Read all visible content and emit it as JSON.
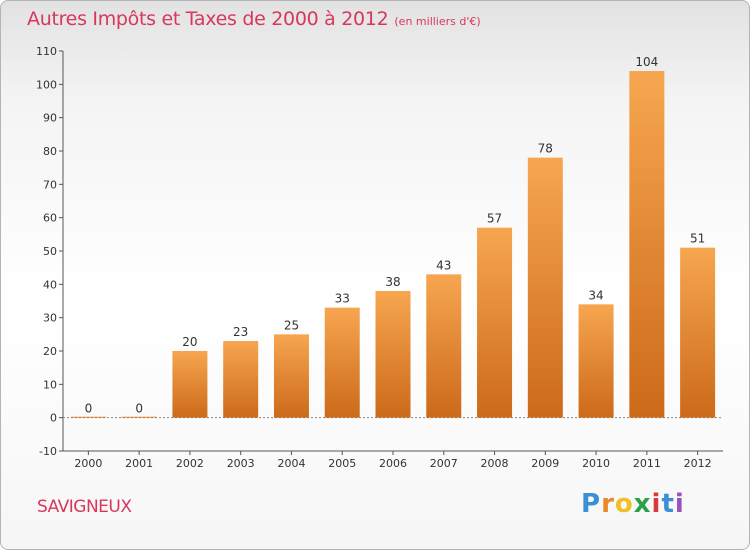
{
  "header": {
    "title": "Autres Impôts et Taxes de 2000 à 2012",
    "unit": "(en milliers d'€)"
  },
  "footer": {
    "commune": "SAVIGNEUX",
    "logo_text": "Proxiti"
  },
  "colors": {
    "title": "#d8375c",
    "bar_top": "#f7a650",
    "bar_bottom": "#cc6a19",
    "axis": "#555555",
    "grid": "#dddddd"
  },
  "chart_data": {
    "type": "bar",
    "title": "Autres Impôts et Taxes de 2000 à 2012",
    "subtitle": "(en milliers d'€)",
    "xlabel": "",
    "ylabel": "",
    "categories": [
      "2000",
      "2001",
      "2002",
      "2003",
      "2004",
      "2005",
      "2006",
      "2007",
      "2008",
      "2009",
      "2010",
      "2011",
      "2012"
    ],
    "values": [
      0,
      0,
      20,
      23,
      25,
      33,
      38,
      43,
      57,
      78,
      34,
      104,
      51
    ],
    "ylim": [
      -10,
      110
    ],
    "yticks": [
      -10,
      0,
      10,
      20,
      30,
      40,
      50,
      60,
      70,
      80,
      90,
      100,
      110
    ],
    "grid": false,
    "legend": "none"
  }
}
